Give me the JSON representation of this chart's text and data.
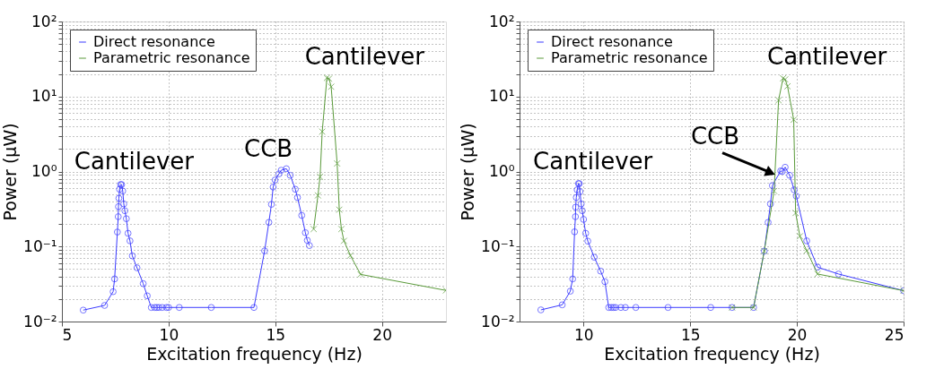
{
  "chart_data": [
    {
      "type": "line",
      "xlabel": "Excitation frequency (Hz)",
      "ylabel": "Power (μW)",
      "log": "y",
      "grid": true,
      "legend": "top left",
      "line_style": "solid",
      "xlim": [
        5,
        23
      ],
      "xticks": [
        5,
        10,
        15,
        20
      ],
      "ylim": [
        0.01,
        100
      ],
      "yticks": [
        {
          "value": 0.01,
          "label": "10⁻²"
        },
        {
          "value": 0.02,
          "label": null
        },
        {
          "value": 0.03,
          "label": null
        },
        {
          "value": 0.04,
          "label": null
        },
        {
          "value": 0.05,
          "label": null
        },
        {
          "value": 0.06,
          "label": null
        },
        {
          "value": 0.07,
          "label": null
        },
        {
          "value": 0.08,
          "label": null
        },
        {
          "value": 0.09,
          "label": null
        },
        {
          "value": 0.1,
          "label": "10⁻¹"
        },
        {
          "value": 0.2,
          "label": null
        },
        {
          "value": 0.3,
          "label": null
        },
        {
          "value": 0.4,
          "label": null
        },
        {
          "value": 0.5,
          "label": null
        },
        {
          "value": 0.6,
          "label": null
        },
        {
          "value": 0.7,
          "label": null
        },
        {
          "value": 0.8,
          "label": null
        },
        {
          "value": 0.9,
          "label": null
        },
        {
          "value": 1,
          "label": "10⁰"
        },
        {
          "value": 2,
          "label": null
        },
        {
          "value": 3,
          "label": null
        },
        {
          "value": 4,
          "label": null
        },
        {
          "value": 5,
          "label": null
        },
        {
          "value": 6,
          "label": null
        },
        {
          "value": 7,
          "label": null
        },
        {
          "value": 8,
          "label": null
        },
        {
          "value": 9,
          "label": null
        },
        {
          "value": 10,
          "label": "10¹"
        },
        {
          "value": 20,
          "label": null
        },
        {
          "value": 30,
          "label": null
        },
        {
          "value": 40,
          "label": null
        },
        {
          "value": 50,
          "label": null
        },
        {
          "value": 60,
          "label": null
        },
        {
          "value": 70,
          "label": null
        },
        {
          "value": 80,
          "label": null
        },
        {
          "value": 90,
          "label": null
        },
        {
          "value": 100,
          "label": "10²"
        }
      ],
      "annotations": [
        {
          "text": "Cantilever",
          "x": 7.75,
          "y": 0.67
        },
        {
          "text": "CCB",
          "x": 15.52,
          "y": 1.09
        },
        {
          "text": "Cantilever",
          "x": 17.42,
          "y": 17.7
        }
      ],
      "series": [
        {
          "name": "Direct resonance",
          "color": "#3b3bff",
          "marker": "circle",
          "x": [
            6.0,
            7.0,
            7.4,
            7.47,
            7.6,
            7.64,
            7.65,
            7.67,
            7.7,
            7.75,
            7.8,
            7.85,
            7.9,
            7.95,
            8.02,
            8.1,
            8.19,
            8.3,
            8.52,
            8.81,
            9.0,
            9.19,
            9.35,
            9.45,
            9.55,
            9.7,
            9.9,
            10.0,
            10.5,
            12.0,
            14.0,
            14.5,
            14.7,
            14.82,
            14.9,
            14.99,
            15.17,
            15.28,
            15.52,
            15.7,
            15.94,
            16.04,
            16.24,
            16.41,
            16.5,
            16.6
          ],
          "values": [
            0.0142,
            0.0164,
            0.025,
            0.037,
            0.156,
            0.25,
            0.34,
            0.44,
            0.58,
            0.67,
            0.67,
            0.55,
            0.37,
            0.3,
            0.235,
            0.15,
            0.119,
            0.075,
            0.052,
            0.032,
            0.022,
            0.0154,
            0.0154,
            0.0154,
            0.0154,
            0.0154,
            0.0154,
            0.0154,
            0.0154,
            0.0154,
            0.0154,
            0.0875,
            0.21,
            0.365,
            0.62,
            0.77,
            0.93,
            1.04,
            1.09,
            0.89,
            0.58,
            0.45,
            0.26,
            0.153,
            0.121,
            0.103
          ]
        },
        {
          "name": "Parametric resonance",
          "color": "#5a9a3a",
          "marker": "cross",
          "x": [
            16.8,
            17.0,
            17.1,
            17.2,
            17.42,
            17.52,
            17.62,
            17.9,
            18.0,
            18.1,
            18.22,
            18.52,
            19.0,
            23.0
          ],
          "values": [
            0.171,
            0.48,
            0.85,
            3.4,
            17.7,
            17.3,
            13.5,
            1.28,
            0.31,
            0.171,
            0.119,
            0.076,
            0.0425,
            0.026
          ]
        }
      ]
    },
    {
      "type": "line",
      "xlabel": "Excitation frequency (Hz)",
      "ylabel": "Power (μW)",
      "log": "y",
      "grid": true,
      "legend": "top left",
      "line_style": "solid",
      "xlim": [
        7,
        25
      ],
      "xticks": [
        10,
        15,
        20,
        25
      ],
      "ylim": [
        0.01,
        100
      ],
      "yticks": [
        {
          "value": 0.01,
          "label": "10⁻²"
        },
        {
          "value": 0.02,
          "label": null
        },
        {
          "value": 0.03,
          "label": null
        },
        {
          "value": 0.04,
          "label": null
        },
        {
          "value": 0.05,
          "label": null
        },
        {
          "value": 0.06,
          "label": null
        },
        {
          "value": 0.07,
          "label": null
        },
        {
          "value": 0.08,
          "label": null
        },
        {
          "value": 0.09,
          "label": null
        },
        {
          "value": 0.1,
          "label": "10⁻¹"
        },
        {
          "value": 0.2,
          "label": null
        },
        {
          "value": 0.3,
          "label": null
        },
        {
          "value": 0.4,
          "label": null
        },
        {
          "value": 0.5,
          "label": null
        },
        {
          "value": 0.6,
          "label": null
        },
        {
          "value": 0.7,
          "label": null
        },
        {
          "value": 0.8,
          "label": null
        },
        {
          "value": 0.9,
          "label": null
        },
        {
          "value": 1,
          "label": "10⁰"
        },
        {
          "value": 2,
          "label": null
        },
        {
          "value": 3,
          "label": null
        },
        {
          "value": 4,
          "label": null
        },
        {
          "value": 5,
          "label": null
        },
        {
          "value": 6,
          "label": null
        },
        {
          "value": 7,
          "label": null
        },
        {
          "value": 8,
          "label": null
        },
        {
          "value": 9,
          "label": null
        },
        {
          "value": 10,
          "label": "10¹"
        },
        {
          "value": 20,
          "label": null
        },
        {
          "value": 30,
          "label": null
        },
        {
          "value": 40,
          "label": null
        },
        {
          "value": 50,
          "label": null
        },
        {
          "value": 60,
          "label": null
        },
        {
          "value": 70,
          "label": null
        },
        {
          "value": 80,
          "label": null
        },
        {
          "value": 90,
          "label": null
        },
        {
          "value": 100,
          "label": "10²"
        }
      ],
      "annotations": [
        {
          "text": "Cantilever",
          "x": 9.76,
          "y": 0.69
        },
        {
          "text": "CCB",
          "x": 19.45,
          "y": 1.14
        },
        {
          "text": "Cantilever",
          "x": 19.35,
          "y": 17.5
        }
      ],
      "series": [
        {
          "name": "Direct resonance",
          "color": "#3b3bff",
          "marker": "circle",
          "x": [
            8.0,
            9.0,
            9.38,
            9.49,
            9.58,
            9.62,
            9.63,
            9.66,
            9.7,
            9.76,
            9.8,
            9.83,
            9.89,
            9.94,
            10.0,
            10.1,
            10.2,
            10.5,
            10.8,
            11.0,
            11.18,
            11.3,
            11.4,
            11.5,
            11.75,
            11.96,
            12.45,
            13.96,
            15.96,
            16.96,
            17.97,
            18.47,
            18.65,
            18.76,
            18.85,
            19.24,
            19.31,
            19.45,
            19.66,
            19.87,
            19.97,
            20.46,
            20.97,
            21.95,
            25.0
          ],
          "values": [
            0.0143,
            0.0167,
            0.0254,
            0.037,
            0.157,
            0.25,
            0.335,
            0.45,
            0.57,
            0.69,
            0.69,
            0.54,
            0.37,
            0.3,
            0.23,
            0.15,
            0.118,
            0.072,
            0.047,
            0.034,
            0.0154,
            0.0154,
            0.0154,
            0.0154,
            0.0154,
            0.0154,
            0.0154,
            0.0154,
            0.0154,
            0.0154,
            0.0154,
            0.087,
            0.21,
            0.37,
            0.65,
            1.02,
            1.0,
            1.14,
            0.89,
            0.57,
            0.47,
            0.119,
            0.053,
            0.043,
            0.0258
          ]
        },
        {
          "name": "Parametric resonance",
          "color": "#5a9a3a",
          "marker": "cross",
          "x": [
            16.96,
            17.97,
            18.47,
            18.93,
            19.14,
            19.35,
            19.45,
            19.56,
            19.85,
            19.94,
            20.14,
            20.46,
            20.97,
            25.0
          ],
          "values": [
            0.0154,
            0.0154,
            0.087,
            0.55,
            8.9,
            17.5,
            16.9,
            13.7,
            4.9,
            0.28,
            0.137,
            0.088,
            0.043,
            0.0258
          ]
        }
      ]
    }
  ]
}
